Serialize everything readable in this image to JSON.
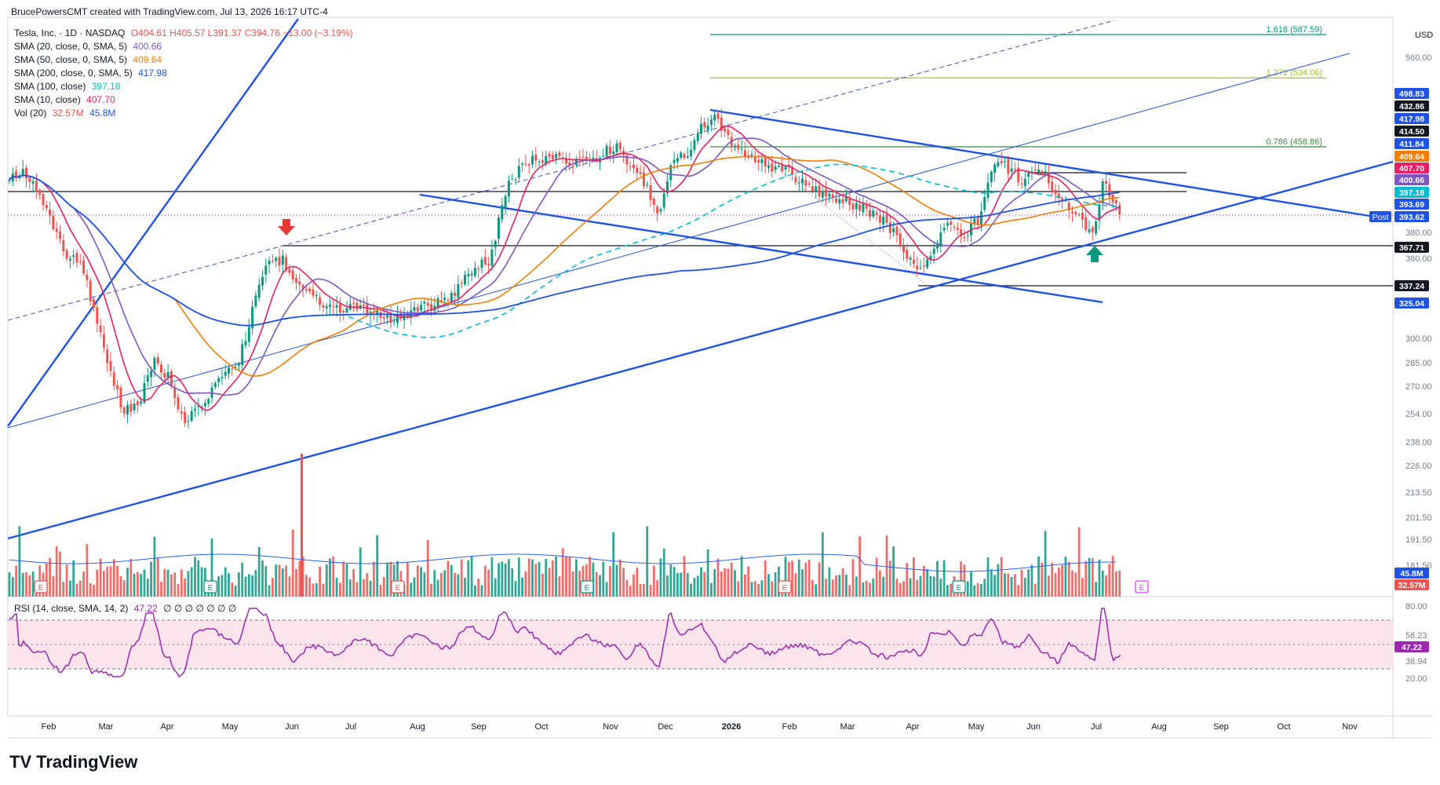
{
  "header": {
    "attribution": "BrucePowersCMT created with TradingView.com, Jul 13, 2026 16:17 UTC-4"
  },
  "legend": {
    "symbol": "Tesla, Inc. · 1D · NASDAQ",
    "ohlc": "O404.61  H405.57  L391.37  C394.76  −13.00 (−3.19%)",
    "sma20": {
      "label": "SMA (20, close, 0, SMA, 5)",
      "value": "400.66",
      "color": "#7e57c2"
    },
    "sma50": {
      "label": "SMA (50, close, 0, SMA, 5)",
      "value": "409.64",
      "color": "#f57c00"
    },
    "sma200": {
      "label": "SMA (200, close, 0, SMA, 5)",
      "value": "417.98",
      "color": "#1e53e5"
    },
    "sma100": {
      "label": "SMA (100, close)",
      "value": "397.18",
      "color": "#00bcd4"
    },
    "sma10": {
      "label": "SMA (10, close)",
      "value": "407.70",
      "color": "#e91e63"
    },
    "vol": {
      "label": "Vol (20)",
      "value1": "32.57M",
      "value2": "45.8M"
    },
    "rsi": {
      "label": "RSI (14, close, SMA, 14, 2)",
      "value": "47.22",
      "tail": "∅ ∅ ∅ ∅ ∅ ∅ ∅"
    }
  },
  "brand": {
    "name": "TradingView",
    "logo": "TV"
  },
  "chart_data": {
    "type": "candlestick",
    "currency": "USD",
    "xaxis_months": [
      "Feb",
      "Mar",
      "Apr",
      "May",
      "Jun",
      "Jul",
      "Aug",
      "Sep",
      "Oct",
      "Nov",
      "Dec",
      "2026",
      "Feb",
      "Mar",
      "Apr",
      "May",
      "Jun",
      "Jul",
      "Aug",
      "Sep",
      "Oct",
      "Nov"
    ],
    "price_ticks": [
      "560.00",
      "380.00",
      "360.00",
      "300.00",
      "285.00",
      "270.00",
      "254.00",
      "238.00",
      "226.00",
      "213.50",
      "201.50",
      "191.50",
      "181.50"
    ],
    "rsi_ticks": [
      "80.00",
      "58.23",
      "38.94",
      "20.00"
    ],
    "fib_levels": [
      {
        "label": "1.618 (587.59)",
        "value": 587.59,
        "color": "#089981"
      },
      {
        "label": "1.272 (534.06)",
        "value": 534.06,
        "color": "#a5c421"
      },
      {
        "label": "0.786 (458.86)",
        "value": 458.86,
        "color": "#388e3c"
      }
    ],
    "horizontal_levels": [
      398.2,
      367.71,
      337.24
    ],
    "price_badges": [
      {
        "text": "498.83",
        "bg": "#1e53e5",
        "fg": "#ffffff"
      },
      {
        "text": "432.86",
        "bg": "#131722",
        "fg": "#ffffff"
      },
      {
        "text": "417.98",
        "bg": "#1e53e5",
        "fg": "#ffffff"
      },
      {
        "text": "414.50",
        "bg": "#131722",
        "fg": "#ffffff"
      },
      {
        "text": "411.84",
        "bg": "#1e53e5",
        "fg": "#ffffff"
      },
      {
        "text": "409.64",
        "bg": "#f57c00",
        "fg": "#ffffff"
      },
      {
        "text": "407.70",
        "bg": "#e91e63",
        "fg": "#ffffff"
      },
      {
        "text": "400.66",
        "bg": "#7e57c2",
        "fg": "#ffffff"
      },
      {
        "text": "397.18",
        "bg": "#00bcd4",
        "fg": "#ffffff"
      },
      {
        "text": "393.69",
        "bg": "#1e53e5",
        "fg": "#ffffff"
      },
      {
        "text": "393.62",
        "bg": "#1e53e5",
        "fg": "#ffffff"
      },
      {
        "text": "367.71",
        "bg": "#131722",
        "fg": "#ffffff"
      },
      {
        "text": "337.24",
        "bg": "#131722",
        "fg": "#ffffff"
      },
      {
        "text": "325.04",
        "bg": "#1e53e5",
        "fg": "#ffffff"
      }
    ],
    "post_label": "Post",
    "volume_badges": [
      {
        "text": "45.8M",
        "bg": "#1e53e5"
      },
      {
        "text": "32.57M",
        "bg": "#ef5350"
      }
    ],
    "rsi_badge": {
      "text": "47.22",
      "bg": "#9c27b0"
    },
    "earnings_marker": "E",
    "colors": {
      "up": "#089981",
      "down": "#ef5350",
      "rsi": "#9c27b0",
      "rsiBand": "#fce4ec",
      "trend": "#1e53e5"
    }
  }
}
